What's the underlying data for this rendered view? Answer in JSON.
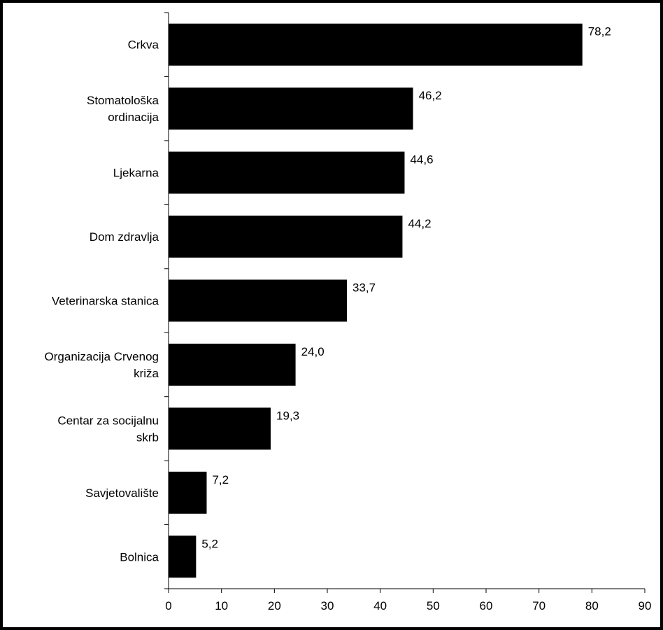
{
  "chart_data": {
    "type": "bar",
    "orientation": "horizontal",
    "categories": [
      [
        "Crkva"
      ],
      [
        "Stomatološka",
        "ordinacija"
      ],
      [
        "Ljekarna"
      ],
      [
        "Dom zdravlja"
      ],
      [
        "Veterinarska stanica"
      ],
      [
        "Organizacija Crvenog",
        "križa"
      ],
      [
        "Centar za socijalnu",
        "skrb"
      ],
      [
        "Savjetovalište"
      ],
      [
        "Bolnica"
      ]
    ],
    "values": [
      78.2,
      46.2,
      44.6,
      44.2,
      33.7,
      24.0,
      19.3,
      7.2,
      5.2
    ],
    "value_labels": [
      "78,2",
      "46,2",
      "44,6",
      "44,2",
      "33,7",
      "24,0",
      "19,3",
      "7,2",
      "5,2"
    ],
    "xlim": [
      0,
      90
    ],
    "xticks": [
      0,
      10,
      20,
      30,
      40,
      50,
      60,
      70,
      80,
      90
    ],
    "title": "",
    "xlabel": "",
    "ylabel": "",
    "grid": false,
    "legend": "none",
    "colors": {
      "bar": "#000000",
      "axis": "#000000",
      "border": "#000000",
      "background": "#ffffff"
    }
  }
}
